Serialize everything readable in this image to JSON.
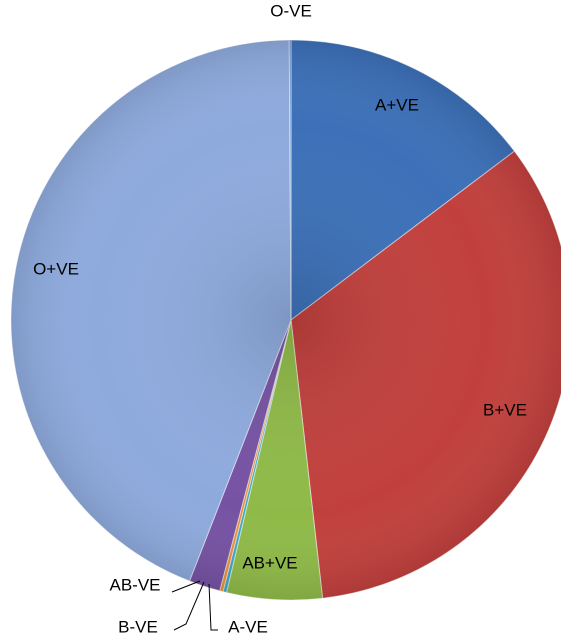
{
  "chart_data": {
    "type": "pie",
    "categories": [
      "A+VE",
      "B+VE",
      "AB+VE",
      "A-VE",
      "B-VE",
      "AB-VE",
      "O+VE",
      "O-VE"
    ],
    "values": [
      14.7,
      33.5,
      5.5,
      0.2,
      0.2,
      1.8,
      44.0,
      0.1
    ],
    "colors": [
      "#3c70b8",
      "#c1403d",
      "#8fba48",
      "#3fa6c4",
      "#e8903a",
      "#7652a3",
      "#8eaadd",
      "#5a86c5"
    ]
  }
}
